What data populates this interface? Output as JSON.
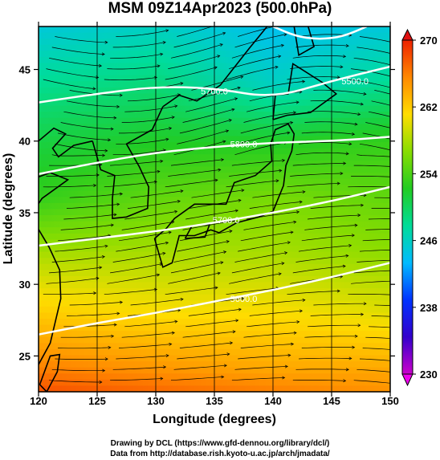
{
  "chart_data": {
    "type": "heatmap",
    "title": "MSM 09Z14Apr2023 (500.0hPa)",
    "xlabel": "Longitude (degrees)",
    "ylabel": "Latitude  (degrees)",
    "xlim": [
      120,
      150
    ],
    "ylim": [
      22.5,
      48
    ],
    "xticks": [
      120,
      125,
      130,
      135,
      140,
      145,
      150
    ],
    "yticks": [
      25,
      30,
      35,
      40,
      45
    ],
    "colorbar": {
      "min": 230,
      "max": 270,
      "ticks": [
        230,
        238,
        246,
        254,
        262,
        270
      ],
      "colors": [
        "#cc00cc",
        "#3300cc",
        "#0033ff",
        "#00bbff",
        "#00dd99",
        "#22cc22",
        "#88dd00",
        "#ffdd00",
        "#ff8800",
        "#ee2200"
      ]
    },
    "temperature_field": {
      "description": "Temperature (K) at 500 hPa, sampled at lon 120,130,140,150",
      "lon": [
        120,
        130,
        140,
        150
      ],
      "lat": [
        48,
        44,
        40,
        36,
        32,
        28,
        24,
        22.5
      ],
      "values": [
        [
          245,
          246,
          244,
          245
        ],
        [
          248,
          249,
          246,
          248
        ],
        [
          251,
          252,
          252,
          253
        ],
        [
          253,
          255,
          256,
          255
        ],
        [
          258,
          258,
          258,
          257
        ],
        [
          262,
          261,
          261,
          260
        ],
        [
          266,
          265,
          264,
          264
        ],
        [
          268,
          267,
          266,
          265
        ]
      ]
    },
    "contours": [
      {
        "label": "5600.0",
        "lon": [
          120,
          125,
          130,
          135,
          140,
          145,
          150
        ],
        "lat": [
          26.5,
          27.3,
          28.0,
          28.8,
          29.6,
          30.5,
          31.5
        ]
      },
      {
        "label": "5700.0",
        "lon": [
          120,
          125,
          130,
          135,
          140,
          145,
          150
        ],
        "lat": [
          32.7,
          33.2,
          33.7,
          34.3,
          35.0,
          35.8,
          36.8
        ]
      },
      {
        "label": "5800.0",
        "lon": [
          120,
          125,
          130,
          135,
          140,
          145,
          150
        ],
        "lat": [
          37.7,
          38.5,
          39.2,
          39.6,
          39.9,
          40.0,
          40.3
        ]
      },
      {
        "label": "5700.0",
        "lon": [
          120,
          125,
          130,
          135,
          140,
          145,
          150
        ],
        "lat": [
          42.7,
          43.3,
          43.8,
          43.7,
          43.0,
          44.2,
          45.2
        ]
      },
      {
        "label": "",
        "lon": [
          140,
          142,
          144,
          146,
          148
        ],
        "lat": [
          48.0,
          47.3,
          47.1,
          47.3,
          48.0
        ]
      }
    ],
    "contour_label_positions": [
      {
        "text": "5600.0",
        "lon": 137.5,
        "lat": 29.0
      },
      {
        "text": "5700.0",
        "lon": 136.0,
        "lat": 34.5
      },
      {
        "text": "5800.0",
        "lon": 137.5,
        "lat": 39.8
      },
      {
        "text": "5700.0",
        "lon": 135.0,
        "lat": 43.5
      },
      {
        "text": "5500.0",
        "lon": 147.0,
        "lat": 44.2
      }
    ]
  },
  "footer": {
    "line1": "Drawing by DCL (https://www.gfd-dennou.org/library/dcl/)",
    "line2": "Data from http://database.rish.kyoto-u.ac.jp/arch/jmadata/"
  }
}
